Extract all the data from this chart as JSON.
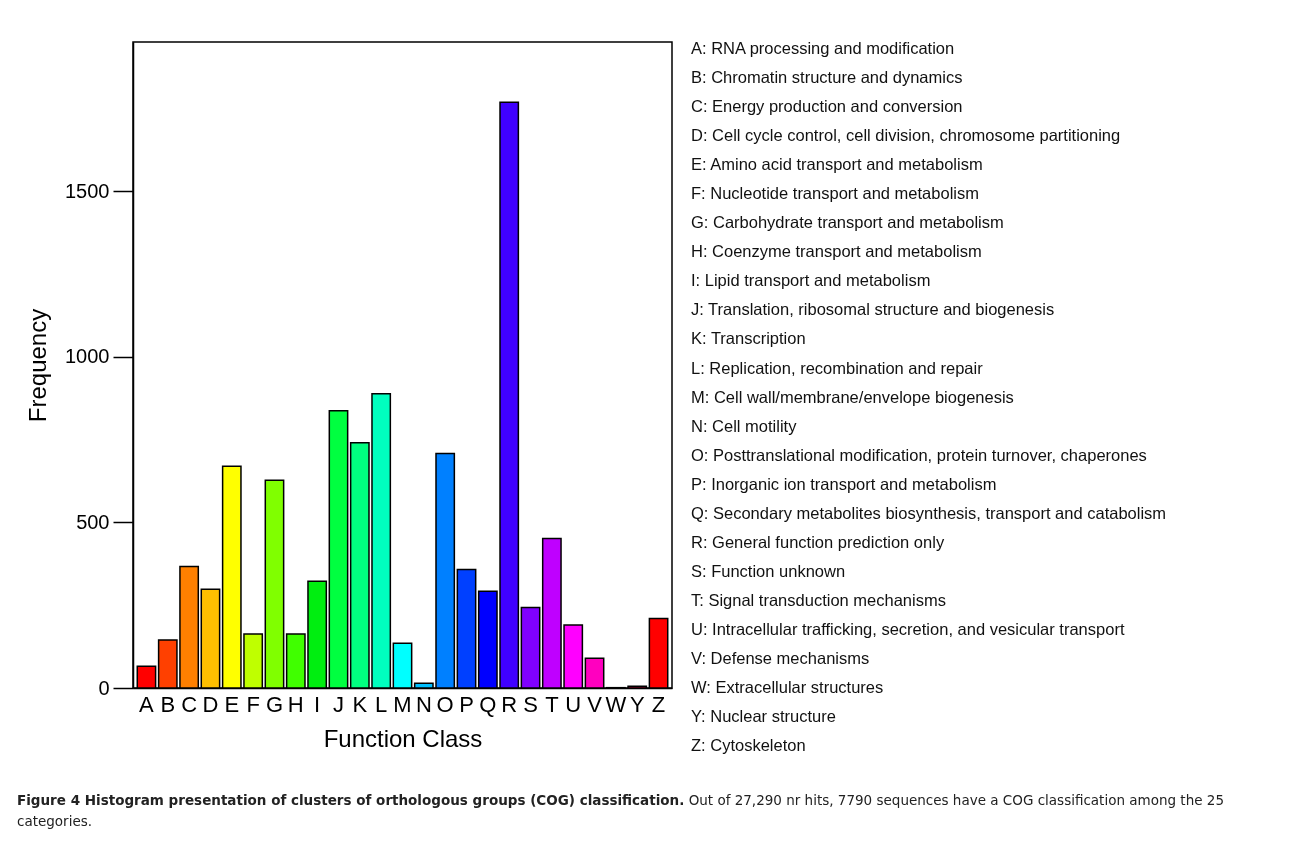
{
  "chart_data": {
    "type": "bar",
    "xlabel": "Function Class",
    "ylabel": "Frequency",
    "title": "Figure 4 Histogram presentation of clusters of orthologous groups (COG) classification.",
    "categories": [
      "A",
      "B",
      "C",
      "D",
      "E",
      "F",
      "G",
      "H",
      "I",
      "J",
      "K",
      "L",
      "M",
      "N",
      "O",
      "P",
      "Q",
      "R",
      "S",
      "T",
      "U",
      "V",
      "W",
      "Y",
      "Z"
    ],
    "values": [
      66,
      145,
      367,
      298,
      669,
      163,
      627,
      163,
      322,
      837,
      740,
      888,
      135,
      14,
      708,
      358,
      292,
      1768,
      243,
      451,
      190,
      90,
      1,
      5,
      210
    ],
    "colors": [
      "#ff0000",
      "#ff4000",
      "#ff8000",
      "#ffbf00",
      "#ffff00",
      "#bfff00",
      "#80ff00",
      "#40ff00",
      "#00ee10",
      "#00ff40",
      "#00ff80",
      "#00ffbf",
      "#00ffff",
      "#00bfff",
      "#0080ff",
      "#0040ff",
      "#0000ff",
      "#4000ff",
      "#8000ff",
      "#bf00ff",
      "#ff00ff",
      "#ff00bf",
      "#ff0080",
      "#ff0040",
      "#ff0000"
    ],
    "ylim": [
      0,
      1950
    ],
    "yticks": [
      0,
      500,
      1000,
      1500
    ],
    "grid": false,
    "legend": false,
    "annotations": [
      "A: RNA processing and modification",
      "B: Chromatin structure and dynamics",
      "C: Energy production and conversion",
      "D: Cell cycle control, cell division, chromosome partitioning",
      "E: Amino acid transport and metabolism",
      "F: Nucleotide transport and metabolism",
      "G: Carbohydrate transport and metabolism",
      "H: Coenzyme transport and metabolism",
      "I: Lipid transport and metabolism",
      "J: Translation, ribosomal structure and biogenesis",
      "K: Transcription",
      "L: Replication, recombination and repair",
      "M: Cell wall/membrane/envelope biogenesis",
      "N: Cell motility",
      "O: Posttranslational modification, protein turnover, chaperones",
      "P: Inorganic ion transport and metabolism",
      "Q: Secondary metabolites biosynthesis, transport and catabolism",
      "R: General function prediction only",
      "S: Function unknown",
      "T: Signal transduction mechanisms",
      "U: Intracellular trafficking, secretion, and vesicular transport",
      "V: Defense mechanisms",
      "W: Extracellular structures",
      "Y: Nuclear structure",
      "Z: Cytoskeleton",
      "Out of 27,290 nr hits, 7790 sequences have a COG classification among the 25 categories."
    ]
  }
}
